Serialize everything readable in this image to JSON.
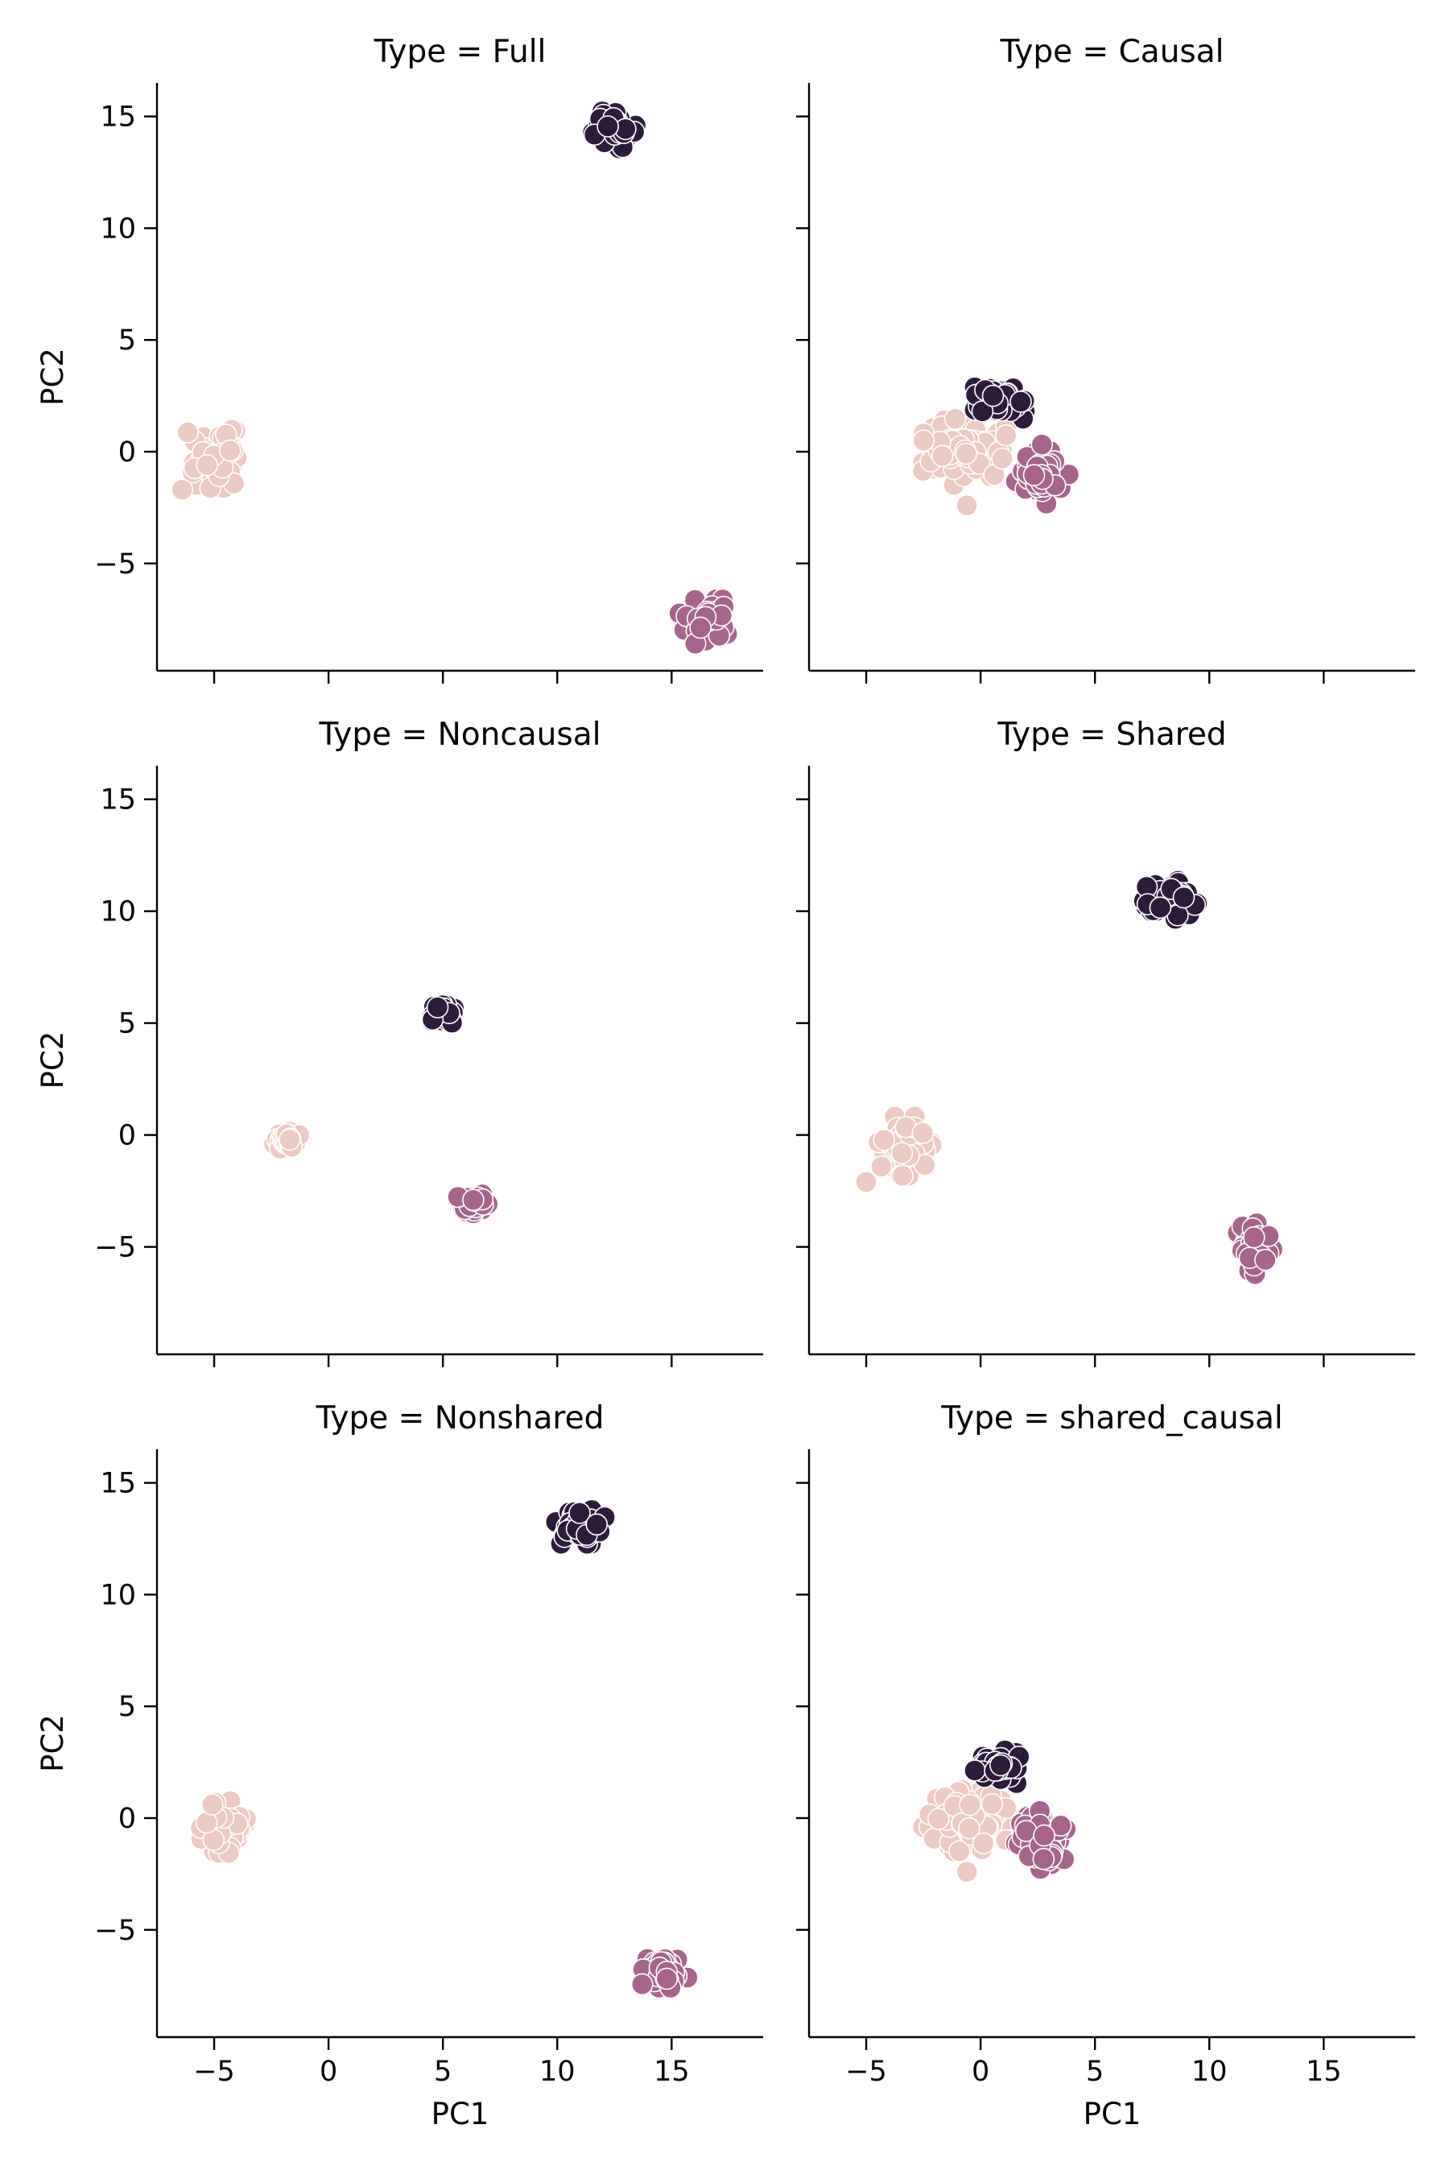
{
  "chart_data": [
    {
      "type": "scatter",
      "title": "Type = Full",
      "xlabel": "",
      "ylabel": "PC2",
      "xlim": [
        -7.5,
        19.0
      ],
      "ylim": [
        -9.8,
        16.5
      ],
      "xticks": [
        -5,
        0,
        5,
        10,
        15
      ],
      "yticks": [
        -5,
        0,
        5,
        10,
        15
      ],
      "show_x_ticklabels": false,
      "show_y_ticklabels": true,
      "grid": false,
      "clusters": [
        {
          "color": "#ecc9c2",
          "center": [
            -5.0,
            -0.3
          ],
          "spread": [
            0.7,
            0.8
          ],
          "count": 70,
          "outliers": [
            [
              -6.4,
              -1.7
            ]
          ]
        },
        {
          "color": "#2d1b3c",
          "center": [
            12.5,
            14.4
          ],
          "spread": [
            0.6,
            0.5
          ],
          "count": 45,
          "outliers": []
        },
        {
          "color": "#a8648c",
          "center": [
            16.5,
            -7.6
          ],
          "spread": [
            0.7,
            0.6
          ],
          "count": 45,
          "outliers": []
        }
      ]
    },
    {
      "type": "scatter",
      "title": "Type = Causal",
      "xlabel": "",
      "ylabel": "",
      "xlim": [
        -7.5,
        19.0
      ],
      "ylim": [
        -9.8,
        16.5
      ],
      "xticks": [
        -5,
        0,
        5,
        10,
        15
      ],
      "yticks": [
        -5,
        0,
        5,
        10,
        15
      ],
      "show_x_ticklabels": false,
      "show_y_ticklabels": false,
      "grid": false,
      "clusters": [
        {
          "color": "#ecc9c2",
          "center": [
            -0.7,
            0.0
          ],
          "spread": [
            1.1,
            0.9
          ],
          "count": 110,
          "outliers": [
            [
              -0.6,
              -2.4
            ]
          ]
        },
        {
          "color": "#2d1b3c",
          "center": [
            0.9,
            2.3
          ],
          "spread": [
            0.7,
            0.5
          ],
          "count": 45,
          "outliers": []
        },
        {
          "color": "#a8648c",
          "center": [
            2.7,
            -1.0
          ],
          "spread": [
            0.7,
            0.8
          ],
          "count": 50,
          "outliers": []
        }
      ]
    },
    {
      "type": "scatter",
      "title": "Type = Noncausal",
      "xlabel": "",
      "ylabel": "PC2",
      "xlim": [
        -7.5,
        19.0
      ],
      "ylim": [
        -9.8,
        16.5
      ],
      "xticks": [
        -5,
        0,
        5,
        10,
        15
      ],
      "yticks": [
        -5,
        0,
        5,
        10,
        15
      ],
      "show_x_ticklabels": false,
      "show_y_ticklabels": true,
      "grid": false,
      "clusters": [
        {
          "color": "#ecc9c2",
          "center": [
            -1.8,
            -0.2
          ],
          "spread": [
            0.35,
            0.25
          ],
          "count": 40,
          "outliers": []
        },
        {
          "color": "#2d1b3c",
          "center": [
            5.0,
            5.4
          ],
          "spread": [
            0.35,
            0.3
          ],
          "count": 35,
          "outliers": []
        },
        {
          "color": "#a8648c",
          "center": [
            6.4,
            -3.0
          ],
          "spread": [
            0.45,
            0.3
          ],
          "count": 35,
          "outliers": []
        }
      ]
    },
    {
      "type": "scatter",
      "title": "Type = Shared",
      "xlabel": "",
      "ylabel": "",
      "xlim": [
        -7.5,
        19.0
      ],
      "ylim": [
        -9.8,
        16.5
      ],
      "xticks": [
        -5,
        0,
        5,
        10,
        15
      ],
      "yticks": [
        -5,
        0,
        5,
        10,
        15
      ],
      "show_x_ticklabels": false,
      "show_y_ticklabels": false,
      "grid": false,
      "clusters": [
        {
          "color": "#ecc9c2",
          "center": [
            -3.3,
            -0.5
          ],
          "spread": [
            0.7,
            0.8
          ],
          "count": 70,
          "outliers": [
            [
              -5.0,
              -2.1
            ]
          ]
        },
        {
          "color": "#2d1b3c",
          "center": [
            8.3,
            10.6
          ],
          "spread": [
            0.7,
            0.6
          ],
          "count": 45,
          "outliers": []
        },
        {
          "color": "#a8648c",
          "center": [
            12.0,
            -5.1
          ],
          "spread": [
            0.6,
            0.7
          ],
          "count": 45,
          "outliers": []
        }
      ]
    },
    {
      "type": "scatter",
      "title": "Type = Nonshared",
      "xlabel": "PC1",
      "ylabel": "PC2",
      "xlim": [
        -7.5,
        19.0
      ],
      "ylim": [
        -9.8,
        16.5
      ],
      "xticks": [
        -5,
        0,
        5,
        10,
        15
      ],
      "yticks": [
        -5,
        0,
        5,
        10,
        15
      ],
      "show_x_ticklabels": true,
      "show_y_ticklabels": true,
      "grid": false,
      "clusters": [
        {
          "color": "#ecc9c2",
          "center": [
            -4.6,
            -0.4
          ],
          "spread": [
            0.6,
            0.7
          ],
          "count": 70,
          "outliers": []
        },
        {
          "color": "#2d1b3c",
          "center": [
            11.1,
            13.1
          ],
          "spread": [
            0.7,
            0.5
          ],
          "count": 45,
          "outliers": []
        },
        {
          "color": "#a8648c",
          "center": [
            14.7,
            -6.8
          ],
          "spread": [
            0.6,
            0.5
          ],
          "count": 45,
          "outliers": []
        }
      ]
    },
    {
      "type": "scatter",
      "title": "Type = shared_causal",
      "xlabel": "PC1",
      "ylabel": "",
      "xlim": [
        -7.5,
        19.0
      ],
      "ylim": [
        -9.8,
        16.5
      ],
      "xticks": [
        -5,
        0,
        5,
        10,
        15
      ],
      "yticks": [
        -5,
        0,
        5,
        10,
        15
      ],
      "show_x_ticklabels": true,
      "show_y_ticklabels": false,
      "grid": false,
      "clusters": [
        {
          "color": "#ecc9c2",
          "center": [
            -0.7,
            0.0
          ],
          "spread": [
            1.1,
            0.9
          ],
          "count": 110,
          "outliers": [
            [
              -0.6,
              -2.4
            ]
          ]
        },
        {
          "color": "#2d1b3c",
          "center": [
            0.9,
            2.3
          ],
          "spread": [
            0.7,
            0.5
          ],
          "count": 45,
          "outliers": []
        },
        {
          "color": "#a8648c",
          "center": [
            2.7,
            -1.0
          ],
          "spread": [
            0.7,
            0.8
          ],
          "count": 50,
          "outliers": []
        }
      ]
    }
  ]
}
